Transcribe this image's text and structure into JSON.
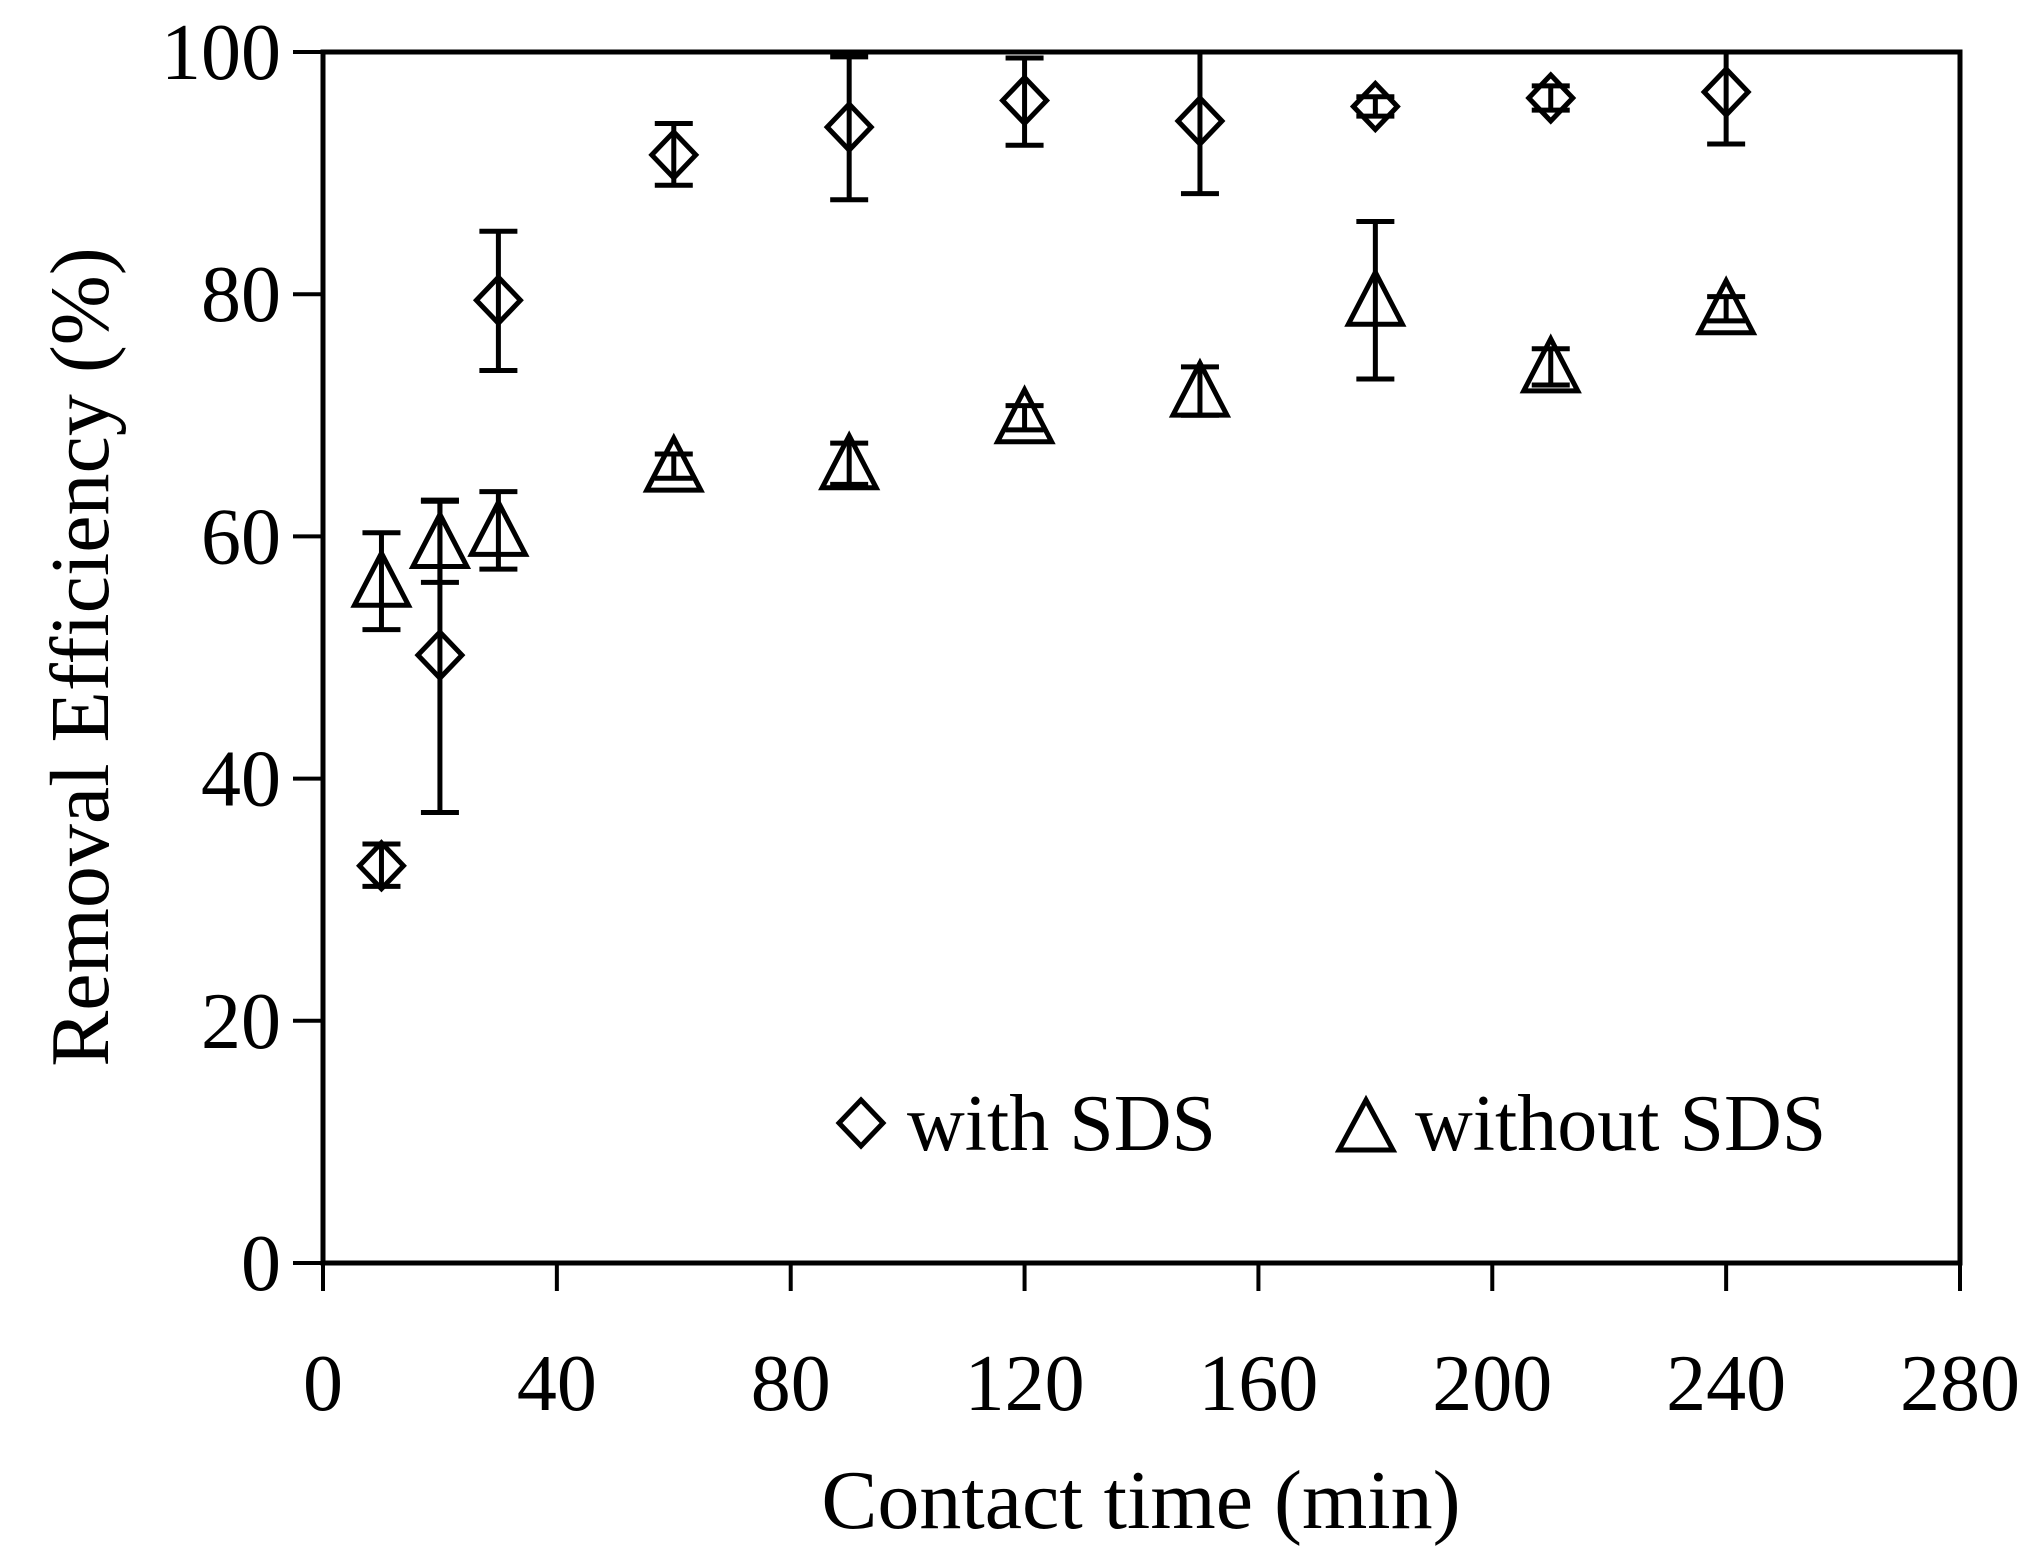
{
  "chart_data": {
    "type": "scatter",
    "title": "",
    "xlabel": "Contact time (min)",
    "ylabel": "Removal Efficiency (%)",
    "xlim": [
      0,
      280
    ],
    "ylim": [
      0,
      100
    ],
    "xticks": [
      0,
      40,
      80,
      120,
      160,
      200,
      240,
      280
    ],
    "yticks": [
      0,
      20,
      40,
      60,
      80,
      100
    ],
    "x_tick_labels": [
      "0",
      "40",
      "80",
      "120",
      "160",
      "200",
      "240",
      "280"
    ],
    "y_tick_labels": [
      "0",
      "20",
      "40",
      "60",
      "80",
      "100"
    ],
    "grid": false,
    "legend_position": "bottom-right",
    "series": [
      {
        "name": "with SDS",
        "marker": "diamond",
        "x": [
          10,
          20,
          30,
          60,
          90,
          120,
          150,
          180,
          210,
          240
        ],
        "y": [
          32.8,
          50.2,
          79.5,
          91.5,
          93.8,
          96.0,
          94.3,
          95.5,
          96.2,
          96.7
        ],
        "err_low": [
          1.7,
          13.0,
          5.8,
          2.5,
          6.0,
          3.7,
          6.0,
          0.8,
          1.0,
          4.3
        ],
        "err_high": [
          1.8,
          12.8,
          5.7,
          2.6,
          5.8,
          3.5,
          5.7,
          0.8,
          1.0,
          3.3
        ]
      },
      {
        "name": "without SDS",
        "marker": "triangle",
        "x": [
          10,
          20,
          30,
          60,
          90,
          120,
          150,
          180,
          210,
          240
        ],
        "y": [
          56.3,
          59.5,
          60.5,
          65.8,
          66.0,
          69.8,
          72.0,
          79.5,
          74.0,
          78.8
        ],
        "err_low": [
          4.0,
          3.3,
          3.2,
          1.0,
          1.7,
          1.0,
          2.0,
          6.5,
          1.5,
          1.0
        ],
        "err_high": [
          4.0,
          3.4,
          3.2,
          1.0,
          1.7,
          1.0,
          2.0,
          6.5,
          1.5,
          1.0
        ]
      }
    ]
  }
}
